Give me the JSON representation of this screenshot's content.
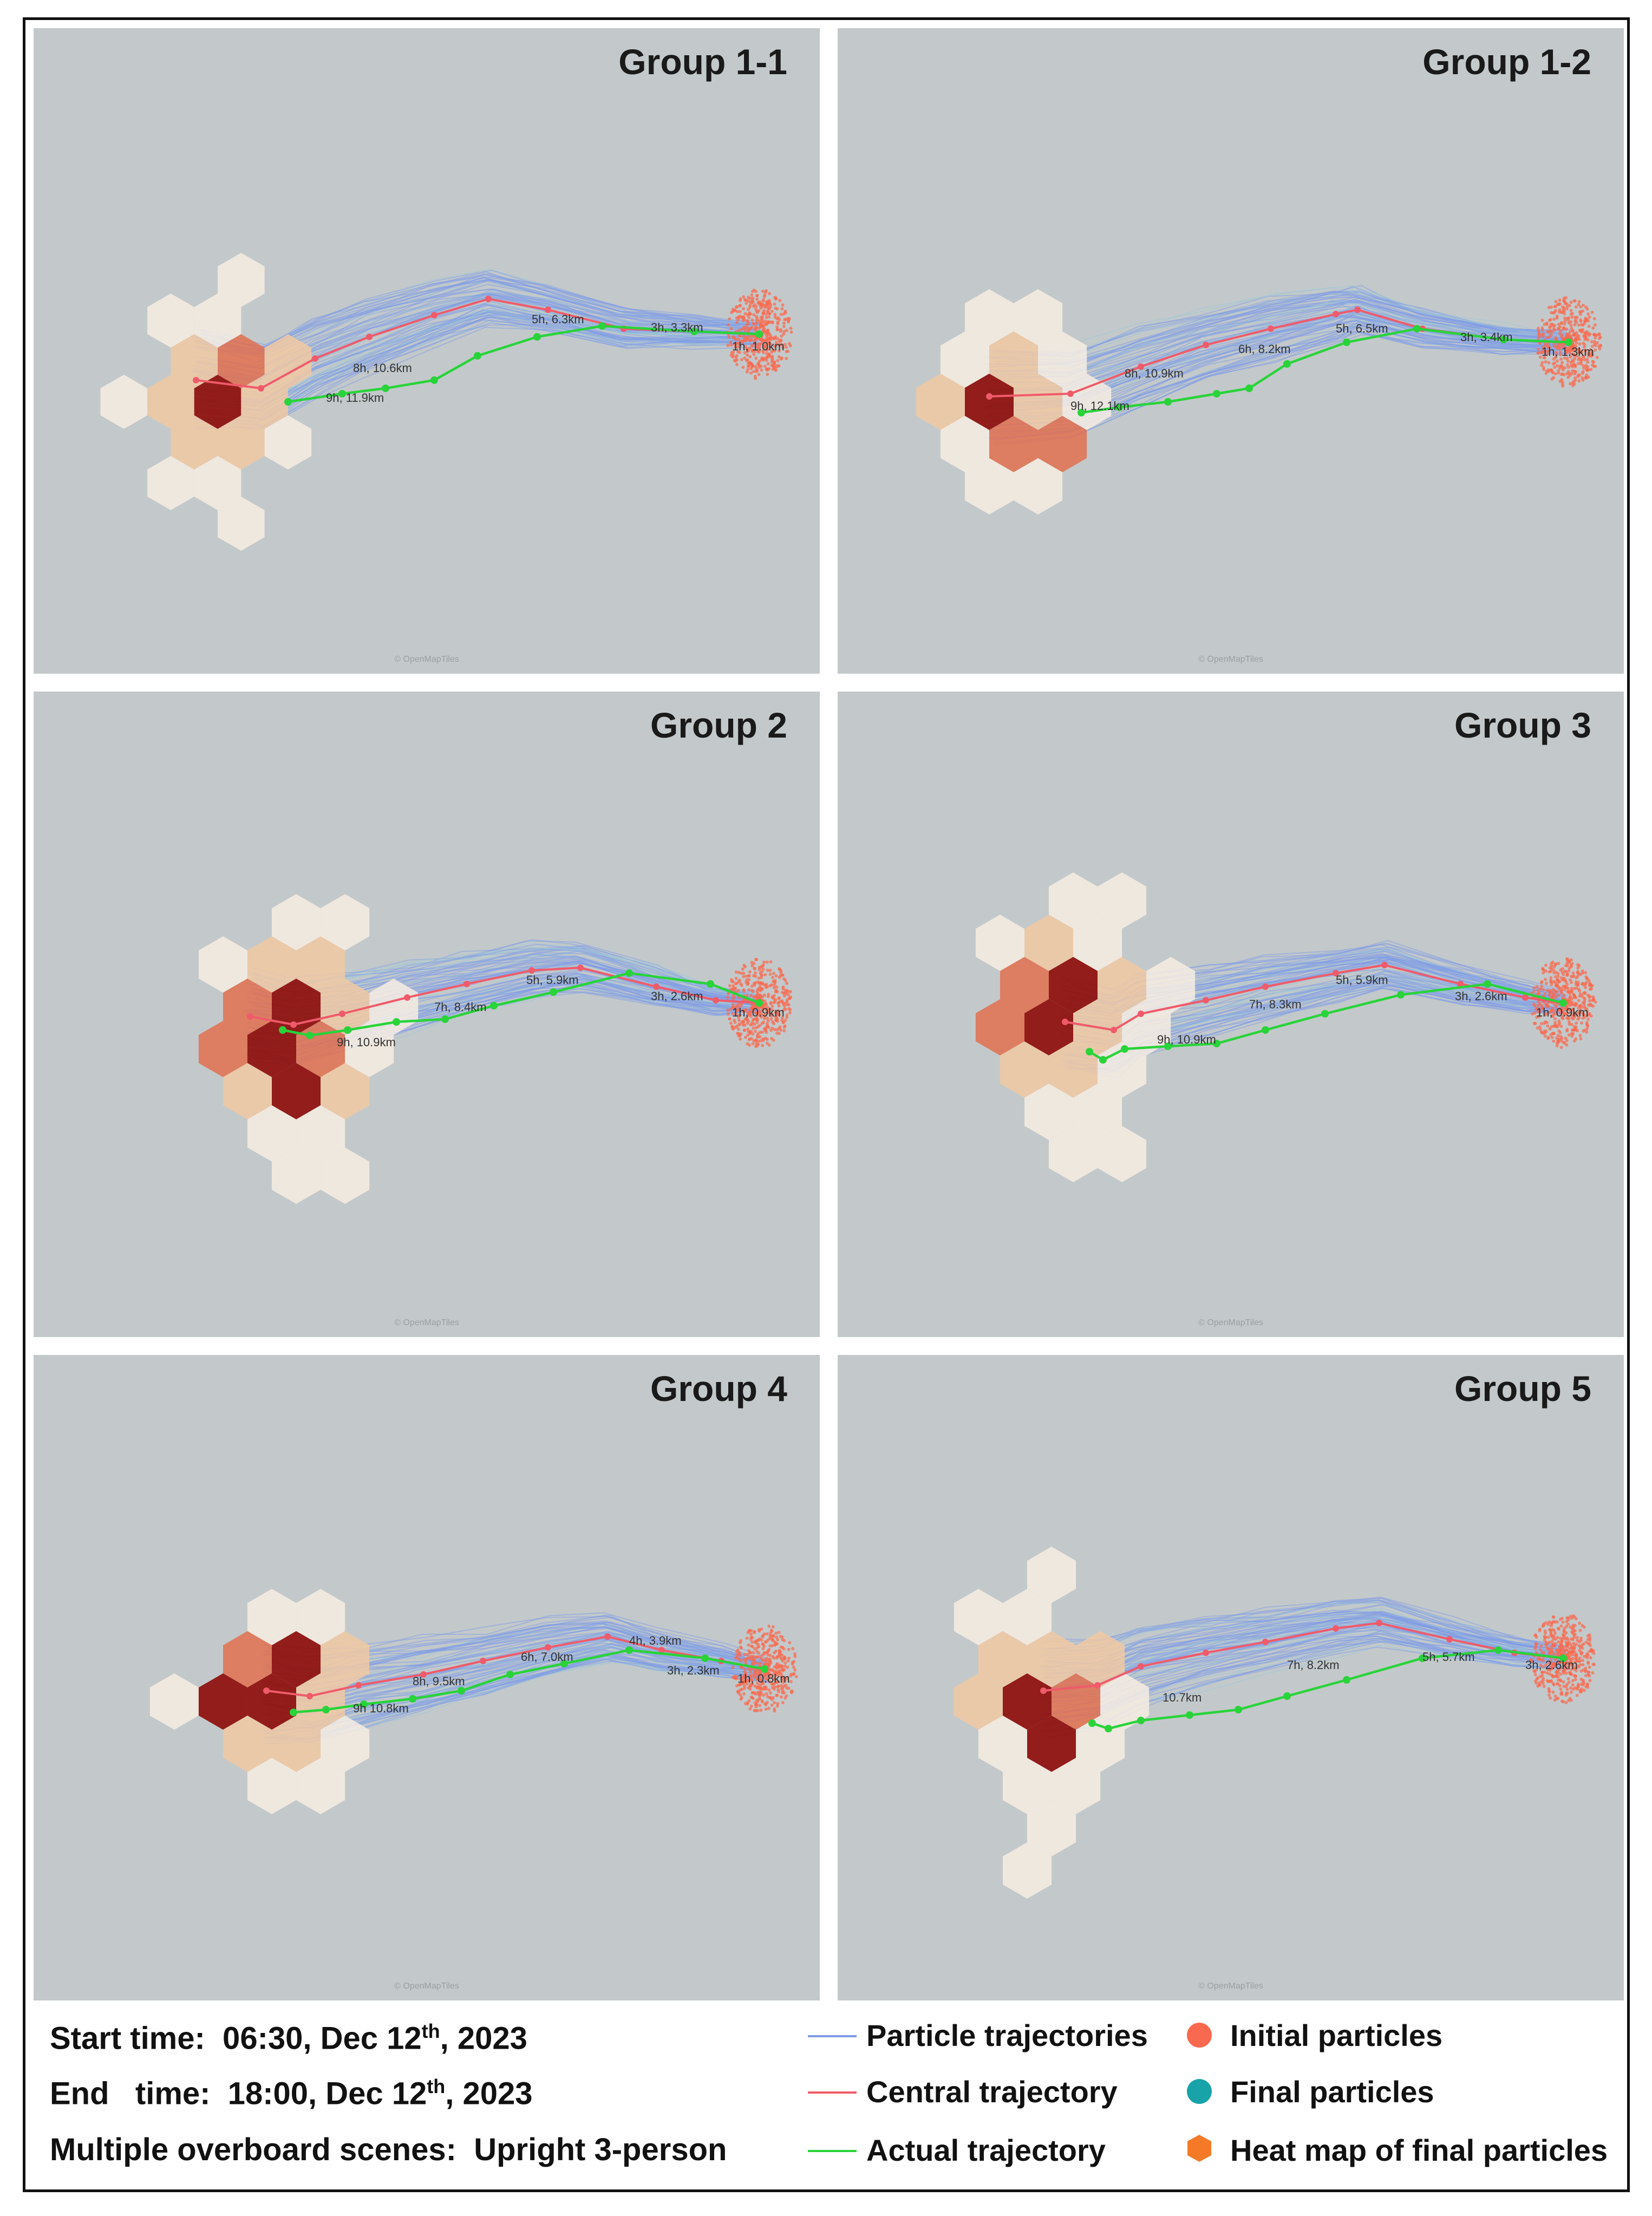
{
  "panels": [
    {
      "title": "Group 1-1",
      "attribution": "© OpenMapTiles",
      "labels": [
        "1h, 1.0km",
        "3h, 3.3km",
        "5h, 6.3km",
        "8h, 10.6km",
        "9h, 11.9km"
      ],
      "hex_hot": [
        3
      ],
      "hex_mid": [
        1,
        2,
        4,
        5,
        7
      ],
      "hex_cells": [
        [
          -1,
          -2
        ],
        [
          0,
          -2
        ],
        [
          -1,
          -1
        ],
        [
          0,
          -1
        ],
        [
          1,
          -1
        ],
        [
          -2,
          0
        ],
        [
          -1,
          0
        ],
        [
          0,
          0
        ],
        [
          1,
          0
        ],
        [
          -1,
          1
        ],
        [
          0,
          1
        ],
        [
          1,
          1
        ],
        [
          -1,
          2
        ],
        [
          0,
          2
        ]
      ]
    },
    {
      "title": "Group 1-2",
      "attribution": "© OpenMapTiles",
      "labels": [
        "1h, 1.3km",
        "3h, 3.4km",
        "5h, 6.5km",
        "6h, 8.2km",
        "8h, 10.9km",
        "9h, 12.1km"
      ],
      "hex_hot": [],
      "hex_mid": [],
      "hex_cells": []
    },
    {
      "title": "Group 2",
      "attribution": "© OpenMapTiles",
      "labels": [
        "1h, 0.9km",
        "3h, 2.6km",
        "5h, 5.9km",
        "7h, 8.4km",
        "9h, 10.9km"
      ],
      "hex_hot": [],
      "hex_mid": [],
      "hex_cells": []
    },
    {
      "title": "Group 3",
      "attribution": "© OpenMapTiles",
      "labels": [
        "1h, 0.9km",
        "3h, 2.6km",
        "5h, 5.9km",
        "7h, 8.3km",
        "9h, 10.9km"
      ],
      "hex_hot": [],
      "hex_mid": [],
      "hex_cells": []
    },
    {
      "title": "Group 4",
      "attribution": "© OpenMapTiles",
      "labels": [
        "1h, 0.8km",
        "3h, 2.3km",
        "4h, 3.9km",
        "6h, 7.0km",
        "8h, 9.5km",
        "9h 10.8km"
      ],
      "hex_hot": [],
      "hex_mid": [],
      "hex_cells": []
    },
    {
      "title": "Group 5",
      "attribution": "© OpenMapTiles",
      "labels": [
        "3h, 2.6km",
        "5h, 5.7km",
        "7h, 8.2km",
        "10.7km"
      ],
      "hex_hot": [],
      "hex_mid": [],
      "hex_cells": []
    }
  ],
  "meta": {
    "start_prefix": "Start time:  06:30, Dec 12",
    "start_sup": "th",
    "start_suffix": ", 2023",
    "end_prefix": "End   time:  18:00, Dec 12",
    "end_sup": "th",
    "end_suffix": ", 2023",
    "scene": "Multiple overboard scenes:  Upright 3-person"
  },
  "legend": {
    "particle": "Particle trajectories",
    "central": "Central trajectory",
    "actual": "Actual trajectory",
    "initial": "Initial particles",
    "final": "Final particles",
    "heatmap": "Heat map of final particles"
  },
  "colors": {
    "map_bg": "#c3c9ca",
    "particle": "#7f9be6",
    "central": "#ef5b6b",
    "actual": "#29d33a",
    "initial": "#f9694f",
    "final": "#17a3a8",
    "heat_low": "#f7ede3",
    "heat_mid": "#f1c9a3",
    "heat_high": "#e2704f",
    "heat_max": "#8f1410"
  }
}
